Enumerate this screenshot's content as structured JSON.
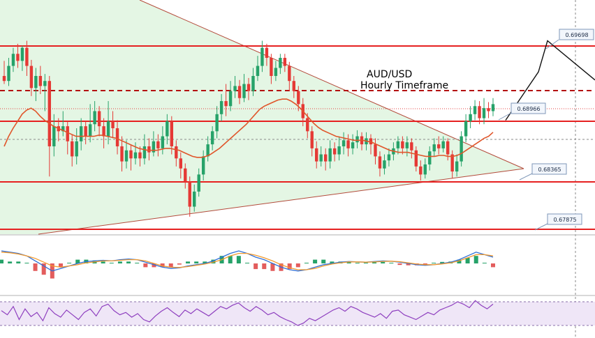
{
  "chart_data": [
    {
      "type": "candlestick",
      "title_line1": "AUD/USD",
      "title_line2": "Hourly Timeframe",
      "levels": [
        {
          "label": "0.69698",
          "value": 0.69698
        },
        {
          "label": "0.68966",
          "value": 0.68966
        },
        {
          "label": "0.68365",
          "value": 0.68365
        },
        {
          "label": "0.67875",
          "value": 0.67875
        }
      ],
      "ylim": [
        0.6785,
        0.701
      ],
      "candles": [
        [
          0.694,
          0.6935,
          0.6955,
          0.6932
        ],
        [
          0.6935,
          0.695,
          0.6958,
          0.693
        ],
        [
          0.695,
          0.6962,
          0.6968,
          0.6944
        ],
        [
          0.6962,
          0.6955,
          0.6972,
          0.6948
        ],
        [
          0.6955,
          0.6968,
          0.697,
          0.6945
        ],
        [
          0.6968,
          0.695,
          0.6975,
          0.694
        ],
        [
          0.695,
          0.6928,
          0.6956,
          0.692
        ],
        [
          0.6928,
          0.694,
          0.6948,
          0.6915
        ],
        [
          0.694,
          0.693,
          0.695,
          0.6922
        ],
        [
          0.693,
          0.6935,
          0.6942,
          0.6905
        ],
        [
          0.6935,
          0.687,
          0.694,
          0.684
        ],
        [
          0.687,
          0.689,
          0.6902,
          0.686
        ],
        [
          0.689,
          0.6885,
          0.6898,
          0.6875
        ],
        [
          0.6885,
          0.689,
          0.6905,
          0.688
        ],
        [
          0.689,
          0.6875,
          0.6895,
          0.6862
        ],
        [
          0.6875,
          0.686,
          0.6882,
          0.685
        ],
        [
          0.686,
          0.6875,
          0.6888,
          0.6852
        ],
        [
          0.6875,
          0.689,
          0.6898,
          0.6866
        ],
        [
          0.689,
          0.688,
          0.6895,
          0.6872
        ],
        [
          0.688,
          0.6892,
          0.6912,
          0.6874
        ],
        [
          0.6892,
          0.6905,
          0.6915,
          0.6885
        ],
        [
          0.6905,
          0.689,
          0.691,
          0.688
        ],
        [
          0.689,
          0.688,
          0.6898,
          0.6868
        ],
        [
          0.688,
          0.6895,
          0.6915,
          0.6872
        ],
        [
          0.6895,
          0.6888,
          0.6905,
          0.6878
        ],
        [
          0.6888,
          0.687,
          0.6896,
          0.6862
        ],
        [
          0.687,
          0.6855,
          0.688,
          0.6845
        ],
        [
          0.6855,
          0.6866,
          0.6876,
          0.6848
        ],
        [
          0.6866,
          0.6858,
          0.6872,
          0.6846
        ],
        [
          0.6858,
          0.6864,
          0.6874,
          0.6852
        ],
        [
          0.6864,
          0.6858,
          0.687,
          0.685
        ],
        [
          0.6858,
          0.687,
          0.6882,
          0.6852
        ],
        [
          0.687,
          0.6864,
          0.6878,
          0.6856
        ],
        [
          0.6864,
          0.6875,
          0.6885,
          0.686
        ],
        [
          0.6875,
          0.6868,
          0.6882,
          0.686
        ],
        [
          0.6868,
          0.688,
          0.689,
          0.6862
        ],
        [
          0.688,
          0.6895,
          0.6902,
          0.6872
        ],
        [
          0.6895,
          0.687,
          0.69,
          0.6862
        ],
        [
          0.687,
          0.6858,
          0.6876,
          0.685
        ],
        [
          0.6858,
          0.6848,
          0.6864,
          0.6838
        ],
        [
          0.6848,
          0.6835,
          0.6853,
          0.6828
        ],
        [
          0.6835,
          0.681,
          0.684,
          0.68
        ],
        [
          0.681,
          0.6825,
          0.6832,
          0.6805
        ],
        [
          0.6825,
          0.6842,
          0.6848,
          0.682
        ],
        [
          0.6842,
          0.686,
          0.6866,
          0.6836
        ],
        [
          0.686,
          0.6872,
          0.688,
          0.6855
        ],
        [
          0.6872,
          0.6885,
          0.689,
          0.6866
        ],
        [
          0.6885,
          0.6902,
          0.691,
          0.6878
        ],
        [
          0.6902,
          0.6915,
          0.6922,
          0.6895
        ],
        [
          0.6915,
          0.691,
          0.6932,
          0.69
        ],
        [
          0.691,
          0.6925,
          0.6935,
          0.6905
        ],
        [
          0.6925,
          0.693,
          0.694,
          0.6918
        ],
        [
          0.693,
          0.6918,
          0.6936,
          0.6912
        ],
        [
          0.6918,
          0.6932,
          0.6942,
          0.6914
        ],
        [
          0.6932,
          0.6925,
          0.6938,
          0.6916
        ],
        [
          0.6925,
          0.694,
          0.6948,
          0.692
        ],
        [
          0.694,
          0.695,
          0.696,
          0.6935
        ],
        [
          0.695,
          0.6968,
          0.6975,
          0.6944
        ],
        [
          0.6968,
          0.6958,
          0.6972,
          0.695
        ],
        [
          0.6958,
          0.694,
          0.6962,
          0.6932
        ],
        [
          0.694,
          0.6948,
          0.6955,
          0.6935
        ],
        [
          0.6948,
          0.6958,
          0.6962,
          0.6942
        ],
        [
          0.6958,
          0.695,
          0.6962,
          0.6944
        ],
        [
          0.695,
          0.6935,
          0.6954,
          0.6925
        ],
        [
          0.6935,
          0.6925,
          0.694,
          0.6918
        ],
        [
          0.6925,
          0.6912,
          0.693,
          0.6905
        ],
        [
          0.6912,
          0.6898,
          0.6918,
          0.689
        ],
        [
          0.6898,
          0.6885,
          0.6903,
          0.6878
        ],
        [
          0.6885,
          0.6868,
          0.689,
          0.686
        ],
        [
          0.6868,
          0.6855,
          0.6875,
          0.6848
        ],
        [
          0.6855,
          0.6862,
          0.687,
          0.685
        ],
        [
          0.6862,
          0.6855,
          0.6868,
          0.6846
        ],
        [
          0.6855,
          0.6868,
          0.6876,
          0.6848
        ],
        [
          0.6868,
          0.6862,
          0.6874,
          0.6855
        ],
        [
          0.6862,
          0.687,
          0.688,
          0.6856
        ],
        [
          0.687,
          0.6876,
          0.6884,
          0.6862
        ],
        [
          0.6876,
          0.6868,
          0.6882,
          0.686
        ],
        [
          0.6868,
          0.6874,
          0.6882,
          0.6862
        ],
        [
          0.6874,
          0.688,
          0.6886,
          0.6868
        ],
        [
          0.688,
          0.6872,
          0.6884,
          0.6866
        ],
        [
          0.6872,
          0.6878,
          0.6884,
          0.6866
        ],
        [
          0.6878,
          0.6872,
          0.6882,
          0.6862
        ],
        [
          0.6872,
          0.686,
          0.6878,
          0.6852
        ],
        [
          0.686,
          0.6848,
          0.6865,
          0.684
        ],
        [
          0.6848,
          0.6856,
          0.6862,
          0.6842
        ],
        [
          0.6856,
          0.6862,
          0.6868,
          0.685
        ],
        [
          0.6862,
          0.6868,
          0.6874,
          0.6856
        ],
        [
          0.6868,
          0.6875,
          0.688,
          0.6862
        ],
        [
          0.6875,
          0.6868,
          0.688,
          0.6862
        ],
        [
          0.6868,
          0.6874,
          0.688,
          0.686
        ],
        [
          0.6874,
          0.6866,
          0.6878,
          0.6858
        ],
        [
          0.6866,
          0.685,
          0.687,
          0.6845
        ],
        [
          0.685,
          0.6842,
          0.6856,
          0.6836
        ],
        [
          0.6842,
          0.6852,
          0.6858,
          0.6838
        ],
        [
          0.6852,
          0.6865,
          0.687,
          0.6846
        ],
        [
          0.6865,
          0.6872,
          0.6878,
          0.686
        ],
        [
          0.6872,
          0.6868,
          0.688,
          0.6862
        ],
        [
          0.6868,
          0.6875,
          0.688,
          0.6864
        ],
        [
          0.6875,
          0.6862,
          0.6878,
          0.6856
        ],
        [
          0.6862,
          0.6845,
          0.6866,
          0.6838
        ],
        [
          0.6845,
          0.6855,
          0.6862,
          0.684
        ],
        [
          0.6855,
          0.688,
          0.6885,
          0.685
        ],
        [
          0.688,
          0.6895,
          0.6902,
          0.6874
        ],
        [
          0.6895,
          0.6902,
          0.691,
          0.6888
        ],
        [
          0.6902,
          0.691,
          0.6916,
          0.6896
        ],
        [
          0.691,
          0.6898,
          0.6915,
          0.6892
        ],
        [
          0.6898,
          0.6908,
          0.6918,
          0.6892
        ],
        [
          0.6908,
          0.6905,
          0.6914,
          0.6898
        ],
        [
          0.6905,
          0.6912,
          0.6918,
          0.69
        ]
      ],
      "ma": [
        0.687,
        0.688,
        0.6888,
        0.6895,
        0.6902,
        0.6906,
        0.6908,
        0.6905,
        0.69,
        0.6896,
        0.6893,
        0.689,
        0.6888,
        0.6886,
        0.6884,
        0.6882,
        0.688,
        0.688,
        0.688,
        0.688,
        0.688,
        0.6881,
        0.6881,
        0.688,
        0.6879,
        0.6878,
        0.6876,
        0.6874,
        0.6872,
        0.687,
        0.6868,
        0.6867,
        0.6866,
        0.6866,
        0.6866,
        0.6867,
        0.6868,
        0.6868,
        0.6867,
        0.6866,
        0.6864,
        0.6862,
        0.686,
        0.6859,
        0.6859,
        0.686,
        0.6862,
        0.6865,
        0.6868,
        0.6872,
        0.6876,
        0.688,
        0.6884,
        0.6888,
        0.6892,
        0.6897,
        0.6902,
        0.6907,
        0.691,
        0.6912,
        0.6914,
        0.6916,
        0.6917,
        0.6917,
        0.6915,
        0.6912,
        0.6908,
        0.6903,
        0.6898,
        0.6893,
        0.6889,
        0.6886,
        0.6884,
        0.6882,
        0.688,
        0.6879,
        0.6878,
        0.6877,
        0.6876,
        0.6876,
        0.6876,
        0.6875,
        0.6874,
        0.6872,
        0.687,
        0.6868,
        0.6866,
        0.6865,
        0.6864,
        0.6864,
        0.6864,
        0.6863,
        0.6862,
        0.6861,
        0.686,
        0.686,
        0.686,
        0.6861,
        0.6861,
        0.686,
        0.686,
        0.6861,
        0.6863,
        0.6866,
        0.6869,
        0.6872,
        0.6875,
        0.6878,
        0.688,
        0.6884
      ],
      "forecast": [
        0.6896,
        0.6944,
        0.6975,
        0.6936
      ]
    },
    {
      "type": "bar-and-line",
      "indicator": "macd",
      "series": [
        {
          "values": [
            1,
            0.9,
            0.8,
            0.6,
            0.2,
            -0.2,
            -0.6,
            -0.4,
            -0.2,
            0,
            0.15,
            0.2,
            0.25,
            0.2,
            0.3,
            0.35,
            0.3,
            0.1,
            -0.1,
            -0.3,
            -0.4,
            -0.35,
            -0.2,
            -0.1,
            0,
            0.2,
            0.5,
            0.8,
            1,
            0.8,
            0.5,
            0.3,
            0,
            -0.3,
            -0.5,
            -0.6,
            -0.5,
            -0.3,
            -0.1,
            0,
            0.1,
            0.15,
            0.12,
            0.1,
            0.15,
            0.2,
            0.18,
            0.1,
            0,
            -0.1,
            -0.15,
            -0.1,
            0,
            0.1,
            0.3,
            0.6,
            0.9,
            0.7,
            0.5
          ]
        },
        {
          "values": [
            0.9,
            0.85,
            0.75,
            0.6,
            0.4,
            0.1,
            -0.2,
            -0.3,
            -0.2,
            -0.1,
            0.05,
            0.12,
            0.2,
            0.2,
            0.25,
            0.3,
            0.3,
            0.2,
            0,
            -0.2,
            -0.3,
            -0.32,
            -0.25,
            -0.15,
            -0.05,
            0.1,
            0.3,
            0.6,
            0.8,
            0.8,
            0.65,
            0.45,
            0.2,
            -0.1,
            -0.35,
            -0.5,
            -0.5,
            -0.4,
            -0.2,
            -0.05,
            0.05,
            0.12,
            0.12,
            0.1,
            0.12,
            0.16,
            0.18,
            0.14,
            0.05,
            -0.05,
            -0.1,
            -0.1,
            -0.04,
            0.05,
            0.2,
            0.45,
            0.7,
            0.7,
            0.6
          ]
        }
      ]
    },
    {
      "type": "line",
      "indicator": "rsi",
      "series": [
        {
          "values": [
            55,
            48,
            62,
            40,
            58,
            45,
            52,
            38,
            60,
            50,
            44,
            56,
            48,
            40,
            52,
            58,
            46,
            62,
            66,
            55,
            48,
            52,
            44,
            50,
            40,
            36,
            46,
            54,
            60,
            52,
            45,
            56,
            50,
            58,
            52,
            46,
            54,
            62,
            58,
            64,
            68,
            60,
            54,
            62,
            56,
            48,
            52,
            45,
            40,
            36,
            30,
            34,
            42,
            38,
            44,
            50,
            56,
            60,
            54,
            62,
            58,
            52,
            48,
            44,
            50,
            42,
            54,
            56,
            48,
            44,
            40,
            46,
            52,
            48,
            56,
            60,
            64,
            70,
            66,
            60,
            72,
            64,
            58,
            66
          ]
        }
      ]
    }
  ]
}
